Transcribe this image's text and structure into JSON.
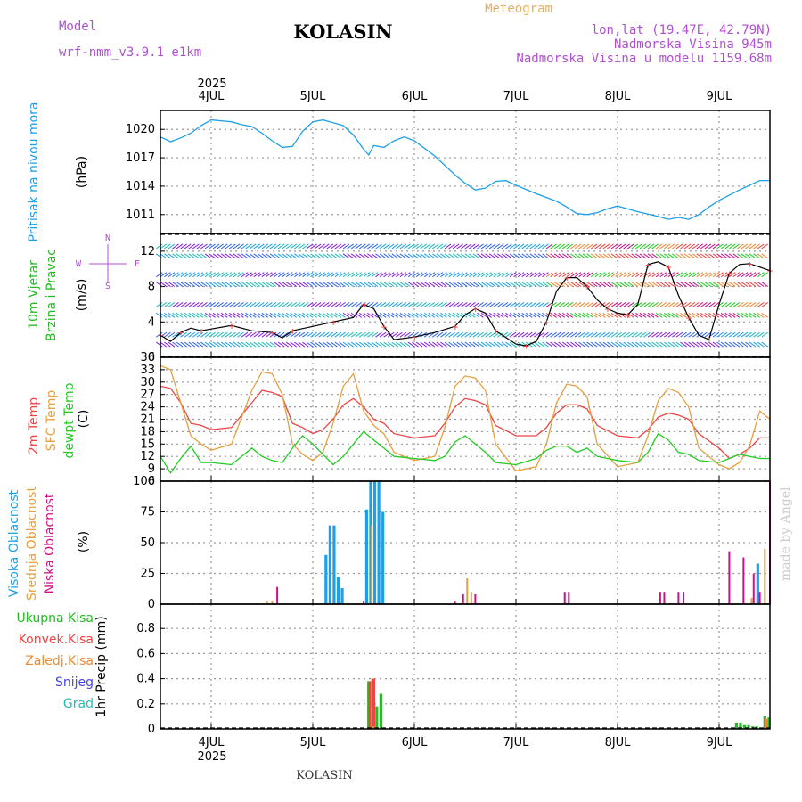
{
  "header": {
    "model_label": "Model",
    "model_name": "wrf-nmm_v3.9.1 e1km",
    "station": "KOLASIN",
    "meteogram": "Meteogram",
    "lonlat": "lon,lat (19.47E, 42.79N)",
    "altitude": "Nadmorska Visina 945m",
    "model_altitude": "Nadmorska Visina u modelu 1159.68m",
    "footer_station": "KOLASIN",
    "credit": "made by Angel"
  },
  "colors": {
    "pressure": "#1ea0e6",
    "wind_label": "#22bb22",
    "temp2m": "#ee4444",
    "sfc": "#e6a040",
    "dew": "#22cc22",
    "high_cloud": "#1ea0e6",
    "mid_cloud": "#e6a040",
    "low_cloud": "#cc1188",
    "header_purple": "#b050d0",
    "header_orange": "#e6b060",
    "rain": "#22bb22",
    "conv": "#ee4444",
    "frz": "#ee8833",
    "snow": "#4444ee",
    "hail": "#22bbbb"
  },
  "chart_data": [
    {
      "type": "line",
      "title": "",
      "xlabel": "",
      "ylabel": "(hPa)",
      "side_label": "Pritisak na nivou mora",
      "x_ticks": [
        "4JUL",
        "5JUL",
        "6JUL",
        "7JUL",
        "8JUL",
        "9JUL"
      ],
      "x_year": "2025",
      "x_range_days": [
        3.5,
        9.5
      ],
      "ylim": [
        1009,
        1022
      ],
      "y_ticks": [
        1011,
        1014,
        1017,
        1020
      ],
      "grid": true,
      "series": [
        {
          "name": "",
          "x": [
            3.5,
            3.6,
            3.7,
            3.8,
            3.9,
            4.0,
            4.1,
            4.2,
            4.3,
            4.4,
            4.5,
            4.6,
            4.7,
            4.8,
            4.9,
            5.0,
            5.1,
            5.2,
            5.3,
            5.4,
            5.5,
            5.55,
            5.6,
            5.7,
            5.8,
            5.9,
            6.0,
            6.2,
            6.4,
            6.5,
            6.6,
            6.7,
            6.8,
            6.9,
            7.0,
            7.2,
            7.4,
            7.5,
            7.6,
            7.7,
            7.8,
            7.9,
            8.0,
            8.2,
            8.4,
            8.5,
            8.6,
            8.7,
            8.8,
            8.9,
            9.0,
            9.2,
            9.4,
            9.5
          ],
          "y": [
            1019.2,
            1018.7,
            1019.1,
            1019.6,
            1020.4,
            1021.0,
            1020.9,
            1020.8,
            1020.5,
            1020.3,
            1019.6,
            1018.8,
            1018.1,
            1018.2,
            1019.8,
            1020.8,
            1021.0,
            1020.7,
            1020.4,
            1019.4,
            1017.9,
            1017.3,
            1018.3,
            1018.1,
            1018.8,
            1019.2,
            1018.8,
            1017.2,
            1015.2,
            1014.3,
            1013.6,
            1013.8,
            1014.5,
            1014.6,
            1014.1,
            1013.2,
            1012.4,
            1011.8,
            1011.1,
            1011.0,
            1011.2,
            1011.6,
            1011.9,
            1011.3,
            1010.8,
            1010.5,
            1010.7,
            1010.5,
            1011.0,
            1011.8,
            1012.5,
            1013.6,
            1014.6,
            1014.6
          ],
          "color": "#1ea0e6"
        }
      ]
    },
    {
      "type": "line",
      "title": "",
      "xlabel": "",
      "ylabel": "(m/s)",
      "side_label": [
        "10m Vjetar",
        "Brzina i Pravac"
      ],
      "compass": {
        "n": "N",
        "s": "S",
        "w": "W",
        "e": "E"
      },
      "ylim": [
        0,
        14
      ],
      "y_ticks": [
        0,
        4,
        8,
        12
      ],
      "grid": true,
      "series": [
        {
          "name": "",
          "x": [
            3.5,
            3.6,
            3.7,
            3.8,
            3.9,
            4.0,
            4.2,
            4.4,
            4.6,
            4.7,
            4.8,
            5.0,
            5.2,
            5.4,
            5.5,
            5.6,
            5.7,
            5.8,
            6.0,
            6.2,
            6.4,
            6.5,
            6.6,
            6.7,
            6.8,
            7.0,
            7.1,
            7.2,
            7.3,
            7.4,
            7.5,
            7.6,
            7.7,
            7.8,
            7.9,
            8.0,
            8.1,
            8.2,
            8.3,
            8.4,
            8.5,
            8.6,
            8.7,
            8.8,
            8.9,
            9.0,
            9.1,
            9.2,
            9.3,
            9.4,
            9.5
          ],
          "y": [
            2.5,
            1.8,
            2.8,
            3.3,
            3.0,
            3.2,
            3.6,
            3.0,
            2.8,
            2.2,
            3.0,
            3.5,
            4.0,
            4.5,
            6.0,
            5.5,
            3.5,
            2.0,
            2.3,
            2.8,
            3.5,
            4.8,
            5.5,
            5.0,
            3.0,
            1.5,
            1.3,
            1.8,
            4.0,
            7.5,
            9.0,
            9.0,
            8.0,
            6.5,
            5.5,
            5.0,
            4.8,
            6.0,
            10.5,
            10.8,
            10.2,
            7.0,
            4.5,
            2.5,
            2.0,
            6.0,
            9.5,
            10.5,
            10.6,
            10.2,
            9.8
          ],
          "color": "#000000"
        }
      ]
    },
    {
      "type": "line",
      "title": "",
      "xlabel": "",
      "ylabel": "(C)",
      "side_label": [
        "2m Temp",
        "SFC Temp",
        "dewpt Temp"
      ],
      "ylim": [
        6,
        36
      ],
      "y_ticks": [
        6,
        9,
        12,
        15,
        18,
        21,
        24,
        27,
        30,
        33,
        36
      ],
      "grid": true,
      "series": [
        {
          "name": "2m Temp",
          "x": [
            3.5,
            3.6,
            3.7,
            3.8,
            3.9,
            4.0,
            4.2,
            4.4,
            4.5,
            4.6,
            4.7,
            4.8,
            4.9,
            5.0,
            5.1,
            5.2,
            5.3,
            5.4,
            5.5,
            5.6,
            5.7,
            5.8,
            6.0,
            6.2,
            6.3,
            6.4,
            6.5,
            6.6,
            6.7,
            6.8,
            7.0,
            7.2,
            7.3,
            7.4,
            7.5,
            7.6,
            7.7,
            7.8,
            8.0,
            8.2,
            8.3,
            8.4,
            8.5,
            8.6,
            8.7,
            8.8,
            9.0,
            9.1,
            9.2,
            9.3,
            9.4,
            9.5
          ],
          "y": [
            29.0,
            28.5,
            25.0,
            20.0,
            19.5,
            18.5,
            19.0,
            25.0,
            28.0,
            27.5,
            26.5,
            20.0,
            19.0,
            17.5,
            18.5,
            21.0,
            24.5,
            26.0,
            24.0,
            21.0,
            20.0,
            17.5,
            16.5,
            17.0,
            20.0,
            24.0,
            26.0,
            25.5,
            24.5,
            19.5,
            17.0,
            17.0,
            19.0,
            22.5,
            24.5,
            24.5,
            23.5,
            19.5,
            17.0,
            16.5,
            18.5,
            21.5,
            22.5,
            22.0,
            21.0,
            17.5,
            14.0,
            11.5,
            12.5,
            14.0,
            16.5,
            16.5
          ],
          "color": "#ee4444"
        },
        {
          "name": "SFC Temp",
          "x": [
            3.5,
            3.6,
            3.7,
            3.8,
            3.9,
            4.0,
            4.2,
            4.4,
            4.5,
            4.6,
            4.7,
            4.8,
            4.9,
            5.0,
            5.1,
            5.2,
            5.3,
            5.4,
            5.5,
            5.6,
            5.7,
            5.8,
            6.0,
            6.2,
            6.3,
            6.4,
            6.5,
            6.6,
            6.7,
            6.8,
            7.0,
            7.2,
            7.3,
            7.4,
            7.5,
            7.6,
            7.7,
            7.8,
            8.0,
            8.2,
            8.3,
            8.4,
            8.5,
            8.6,
            8.7,
            8.8,
            9.0,
            9.1,
            9.2,
            9.3,
            9.4,
            9.5
          ],
          "y": [
            34.0,
            33.0,
            25.0,
            17.0,
            15.0,
            13.5,
            15.0,
            28.0,
            32.5,
            32.0,
            27.0,
            15.0,
            12.5,
            11.0,
            13.0,
            20.0,
            29.0,
            32.0,
            23.0,
            19.5,
            17.5,
            13.0,
            11.0,
            12.0,
            19.0,
            29.0,
            31.5,
            31.0,
            28.0,
            15.0,
            8.5,
            9.5,
            15.0,
            25.0,
            29.5,
            29.0,
            26.5,
            15.0,
            9.5,
            10.5,
            17.0,
            25.5,
            28.5,
            27.5,
            24.0,
            14.0,
            10.0,
            9.0,
            10.5,
            14.5,
            23.0,
            21.0
          ],
          "color": "#e6a040"
        },
        {
          "name": "dewpt Temp",
          "x": [
            3.5,
            3.6,
            3.7,
            3.8,
            3.9,
            4.0,
            4.2,
            4.4,
            4.5,
            4.6,
            4.7,
            4.8,
            4.9,
            5.0,
            5.1,
            5.2,
            5.3,
            5.4,
            5.5,
            5.6,
            5.7,
            5.8,
            6.0,
            6.2,
            6.3,
            6.4,
            6.5,
            6.6,
            6.7,
            6.8,
            7.0,
            7.2,
            7.3,
            7.4,
            7.5,
            7.6,
            7.7,
            7.8,
            8.0,
            8.2,
            8.3,
            8.4,
            8.5,
            8.6,
            8.7,
            8.8,
            9.0,
            9.1,
            9.2,
            9.3,
            9.4,
            9.5
          ],
          "y": [
            12.0,
            8.0,
            11.5,
            14.5,
            10.5,
            10.5,
            10.0,
            14.0,
            12.0,
            11.0,
            10.5,
            14.0,
            17.0,
            15.0,
            12.5,
            10.0,
            12.0,
            15.0,
            18.0,
            16.0,
            14.0,
            12.0,
            11.5,
            11.0,
            12.0,
            15.5,
            17.0,
            15.0,
            13.0,
            10.5,
            10.0,
            11.5,
            13.5,
            14.5,
            14.5,
            13.0,
            14.0,
            12.0,
            11.0,
            10.5,
            13.0,
            17.5,
            16.0,
            13.0,
            12.5,
            11.0,
            10.5,
            11.5,
            12.5,
            12.0,
            11.5,
            11.5
          ],
          "color": "#22cc22"
        }
      ]
    },
    {
      "type": "bar",
      "title": "",
      "xlabel": "",
      "ylabel": "(%)",
      "side_label": [
        "Visoka Oblacnost",
        "Srednja Oblacnost",
        "Niska Oblacnost"
      ],
      "ylim": [
        0,
        100
      ],
      "y_ticks": [
        0,
        25,
        50,
        75,
        100
      ],
      "grid": true,
      "series": [
        {
          "name": "Visoka Oblacnost",
          "x": [
            5.13,
            5.17,
            5.21,
            5.25,
            5.29,
            5.53,
            5.57,
            5.61,
            5.65,
            5.69,
            9.38
          ],
          "values": [
            40,
            64,
            64,
            22,
            13,
            77,
            100,
            100,
            100,
            75,
            33
          ],
          "color": "#1ea0e6"
        },
        {
          "name": "Srednja Oblacnost",
          "x": [
            4.55,
            4.6,
            5.58,
            6.52,
            6.56,
            9.32,
            9.45
          ],
          "values": [
            2,
            3,
            64,
            21,
            10,
            5,
            45
          ],
          "color": "#e6a040"
        },
        {
          "name": "Niska Oblacnost",
          "x": [
            4.65,
            5.5,
            6.4,
            6.48,
            6.6,
            7.48,
            7.52,
            8.42,
            8.46,
            8.6,
            8.65,
            9.1,
            9.24,
            9.34,
            9.4,
            9.5
          ],
          "values": [
            14,
            2,
            2,
            8,
            8,
            10,
            10,
            10,
            10,
            10,
            10,
            43,
            38,
            25,
            10,
            100
          ],
          "color": "#cc1188"
        }
      ]
    },
    {
      "type": "bar",
      "title": "",
      "xlabel": "",
      "ylabel": "1hr Precip (mm)",
      "side_label": [
        "Ukupna Kisa",
        "Konvek.Kisa",
        "Zaledj.Kisa",
        "Snijeg",
        "Grad"
      ],
      "ylim": [
        0,
        1
      ],
      "y_ticks": [
        0,
        0.2,
        0.4,
        0.6,
        0.8
      ],
      "grid": true,
      "series": [
        {
          "name": "Ukupna Kisa",
          "x": [
            5.55,
            5.59,
            5.63,
            5.67,
            9.17,
            9.21,
            9.25,
            9.29,
            9.33,
            9.37,
            9.41,
            9.45,
            9.49
          ],
          "values": [
            0.38,
            0.4,
            0.18,
            0.28,
            0.05,
            0.05,
            0.03,
            0.03,
            0.02,
            0.02,
            0.01,
            0.1,
            0.09
          ],
          "color": "#22bb22"
        },
        {
          "name": "Konvek.Kisa",
          "x": [
            5.56,
            5.6
          ],
          "values": [
            0.38,
            0.4
          ],
          "color": "#ee4444"
        },
        {
          "name": "Zaledj.Kisa",
          "x": [
            5.6,
            9.46
          ],
          "values": [
            0.02,
            0.08
          ],
          "color": "#ee8833"
        },
        {
          "name": "Snijeg",
          "x": [],
          "values": [],
          "color": "#4444ee"
        },
        {
          "name": "Grad",
          "x": [],
          "values": [],
          "color": "#22bbbb"
        }
      ]
    }
  ]
}
